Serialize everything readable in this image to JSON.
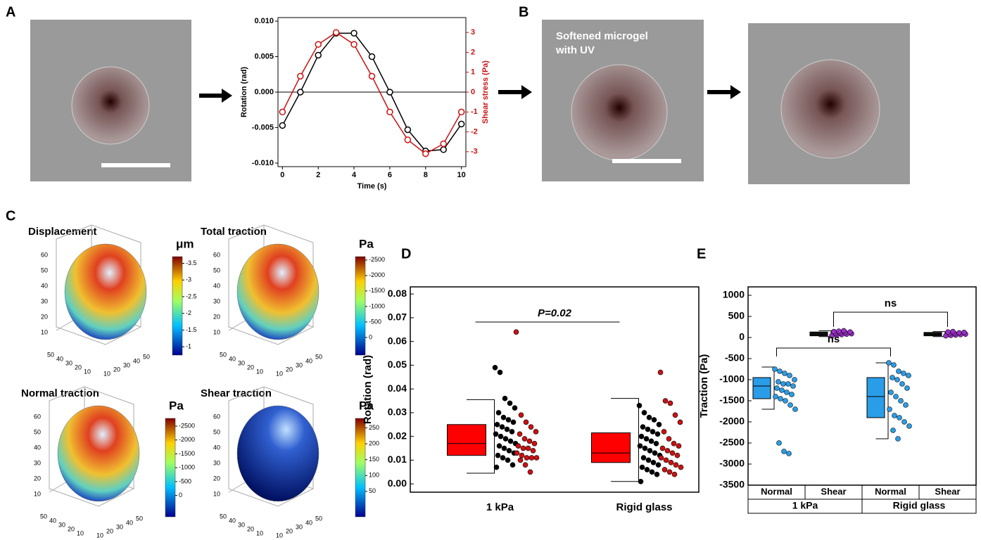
{
  "panel_labels": [
    "A",
    "B",
    "C",
    "D",
    "E"
  ],
  "image_b_caption": [
    "Softened microgel",
    "with UV"
  ],
  "panel_c": [
    {
      "title": "Displacement",
      "unit": "μm",
      "clim": [
        -0.75,
        -3.7
      ],
      "colorbar_ticks": [
        -3.5,
        -3,
        -2.5,
        -2,
        -1.5,
        -1
      ],
      "z_ticks": [
        10,
        20,
        30,
        40,
        50,
        60
      ],
      "x_ticks": [
        50,
        40,
        30,
        20,
        10
      ],
      "y_ticks": [
        10,
        20,
        30,
        40,
        50
      ]
    },
    {
      "title": "Total traction",
      "unit": "Pa",
      "clim": [
        570,
        -2610
      ],
      "colorbar_ticks": [
        -2500,
        -2000,
        -1500,
        -1000,
        -500,
        0
      ],
      "z_ticks": [
        10,
        20,
        30,
        40,
        50,
        60
      ],
      "x_ticks": [
        50,
        40,
        30,
        20,
        10
      ],
      "y_ticks": [
        10,
        20,
        30,
        40,
        50
      ]
    },
    {
      "title": "Normal traction",
      "unit": "Pa",
      "clim": [
        770,
        -2780
      ],
      "colorbar_ticks": [
        -2500,
        -2000,
        -1500,
        -1000,
        -500,
        0
      ],
      "z_ticks": [
        10,
        20,
        30,
        40,
        50,
        60
      ],
      "x_ticks": [
        50,
        40,
        30,
        20,
        10
      ],
      "y_ticks": [
        10,
        20,
        30,
        40,
        50
      ]
    },
    {
      "title": "Shear traction",
      "unit": "Pa",
      "clim": [
        -30,
        280
      ],
      "colorbar_ticks": [
        50,
        100,
        150,
        200,
        250
      ],
      "z_ticks": [
        10,
        20,
        30,
        40,
        50,
        60
      ],
      "x_ticks": [
        50,
        40,
        30,
        20,
        10
      ],
      "y_ticks": [
        10,
        20,
        30,
        40,
        50
      ]
    }
  ],
  "chart_data": [
    {
      "type": "line",
      "x_label": "Time (s)",
      "y_label": "Rotation (rad)",
      "y2_label": "Shear stress (Pa)",
      "x": [
        0,
        1,
        2,
        3,
        4,
        5,
        6,
        7,
        8,
        9,
        10
      ],
      "xlim": [
        -0.25,
        10.25
      ],
      "xticks": [
        0,
        2,
        4,
        6,
        8,
        10
      ],
      "ylim": [
        -0.0105,
        0.0105
      ],
      "yticks": [
        {
          "value": -0.01,
          "label": "-0.010"
        },
        -0.005,
        {
          "value": 0,
          "label": "0.000"
        },
        0.005,
        {
          "value": 0.01,
          "label": "0.010"
        }
      ],
      "y2lim": [
        -3.75,
        3.75
      ],
      "y2ticks": [
        -3,
        -2,
        -1,
        0,
        1,
        2,
        3
      ],
      "series": [
        {
          "color": "#000000",
          "values": [
            -0.0047,
            0,
            0.0052,
            0.0083,
            0.0083,
            0.005,
            0,
            -0.0053,
            -0.0083,
            -0.0081,
            -0.0045
          ]
        },
        {
          "color": "#cc1111",
          "axis": "y2",
          "values": [
            -1,
            0.8,
            2.4,
            3,
            2.4,
            0.8,
            -1,
            -2.4,
            -3.1,
            -2.6,
            -1
          ]
        }
      ]
    },
    {
      "type": "box",
      "y_label": "Rotation (rad)",
      "categories": [
        "1 kPa",
        "Rigid glass"
      ],
      "ylim": [
        -0.0035,
        0.083
      ],
      "yticks": [
        {
          "value": 0,
          "label": "0.00"
        },
        {
          "value": 0.01,
          "label": "0.01"
        },
        {
          "value": 0.02,
          "label": "0.02"
        },
        {
          "value": 0.03,
          "label": "0.03"
        },
        {
          "value": 0.04,
          "label": "0.04"
        },
        {
          "value": 0.05,
          "label": "0.05"
        },
        {
          "value": 0.06,
          "label": "0.06"
        },
        {
          "value": 0.07,
          "label": "0.07"
        },
        {
          "value": 0.08,
          "label": "0.08"
        }
      ],
      "annotations": [
        "P=0.02"
      ],
      "boxes": [
        {
          "color": "#ff0000",
          "q1": 0.012,
          "median": 0.017,
          "q3": 0.025,
          "whisker_low": 0.0045,
          "whisker_high": 0.0355,
          "points": [
            {
              "color": "#000000",
              "values": [
                0.049,
                0.047,
                0.036,
                0.034,
                0.032,
                0.03,
                0.028,
                0.027,
                0.026,
                0.025,
                0.024,
                0.023,
                0.022,
                0.021,
                0.02,
                0.019,
                0.018,
                0.017,
                0.016,
                0.015,
                0.014,
                0.013,
                0.012,
                0.011,
                0.01,
                0.008,
                0.007
              ]
            },
            {
              "color": "#cc1111",
              "values": [
                0.064,
                0.029,
                0.026,
                0.024,
                0.022,
                0.021,
                0.019,
                0.018,
                0.017,
                0.016,
                0.015,
                0.015,
                0.014,
                0.013,
                0.012,
                0.011,
                0.011,
                0.011,
                0.01,
                0.008,
                0.005
              ]
            }
          ]
        },
        {
          "color": "#ff0000",
          "q1": 0.009,
          "median": 0.013,
          "q3": 0.0215,
          "whisker_low": 0.001,
          "whisker_high": 0.036,
          "points": [
            {
              "color": "#000000",
              "values": [
                0.033,
                0.03,
                0.028,
                0.027,
                0.025,
                0.024,
                0.023,
                0.022,
                0.021,
                0.02,
                0.019,
                0.018,
                0.017,
                0.016,
                0.015,
                0.014,
                0.013,
                0.012,
                0.011,
                0.01,
                0.009,
                0.008,
                0.007,
                0.006,
                0.005,
                0.004,
                0.001
              ]
            },
            {
              "color": "#cc1111",
              "values": [
                0.047,
                0.035,
                0.034,
                0.029,
                0.026,
                0.022,
                0.019,
                0.017,
                0.016,
                0.015,
                0.014,
                0.013,
                0.012,
                0.011,
                0.01,
                0.009,
                0.008,
                0.007,
                0.006,
                0.005,
                0.004
              ]
            }
          ]
        }
      ]
    },
    {
      "type": "box",
      "y_label": "Traction (Pa)",
      "categories": [
        "Normal",
        "Shear",
        "Normal",
        "Shear"
      ],
      "groups": [
        "1 kPa",
        "Rigid glass"
      ],
      "ylim": [
        -3500,
        1200
      ],
      "yticks": [
        -3500,
        -3000,
        -2500,
        -2000,
        -1500,
        -1000,
        -500,
        0,
        500,
        1000
      ],
      "annotations": [
        "ns",
        "ns"
      ],
      "boxes": [
        {
          "color": "#2a9de8",
          "q1": -1450,
          "median": -1150,
          "q3": -950,
          "whisker_low": -1700,
          "whisker_high": -700,
          "points": [
            {
              "color": "#2a9de8",
              "values": [
                -750,
                -800,
                -850,
                -900,
                -1000,
                -1050,
                -1100,
                -1100,
                -1150,
                -1200,
                -1250,
                -1300,
                -1350,
                -1400,
                -1450,
                -1500,
                -1600,
                -1700,
                -2500,
                -2700,
                -2750
              ]
            }
          ]
        },
        {
          "color": "#111111",
          "q1": 40,
          "median": 80,
          "q3": 130,
          "whisker_low": 20,
          "whisker_high": 160,
          "points": [
            {
              "color": "#9b30c8",
              "values": [
                40,
                60,
                70,
                80,
                90,
                100,
                110,
                120,
                130,
                140,
                150,
                160
              ]
            }
          ]
        },
        {
          "color": "#2a9de8",
          "q1": -1900,
          "median": -1400,
          "q3": -950,
          "whisker_low": -2400,
          "whisker_high": -600,
          "points": [
            {
              "color": "#2a9de8",
              "values": [
                -600,
                -650,
                -800,
                -850,
                -900,
                -950,
                -1000,
                -1100,
                -1200,
                -1300,
                -1400,
                -1500,
                -1600,
                -1700,
                -1850,
                -1900,
                -2000,
                -2100,
                -2200,
                -2400
              ]
            }
          ]
        },
        {
          "color": "#111111",
          "q1": 40,
          "median": 80,
          "q3": 120,
          "whisker_low": 20,
          "whisker_high": 140,
          "points": [
            {
              "color": "#9b30c8",
              "values": [
                40,
                50,
                60,
                70,
                80,
                90,
                100,
                110,
                120,
                130,
                140
              ]
            }
          ]
        }
      ]
    }
  ]
}
